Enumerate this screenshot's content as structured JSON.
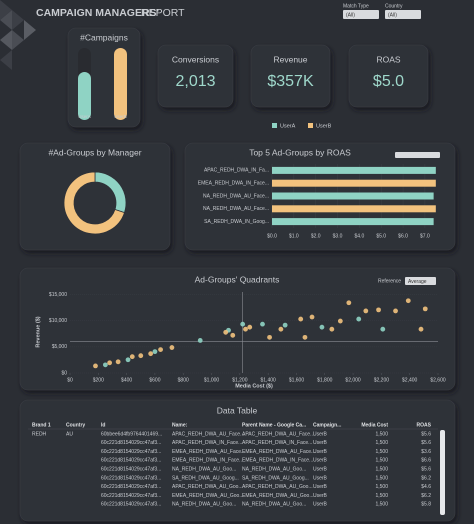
{
  "header": {
    "title": "CAMPAIGN MANAGERS'",
    "title_suffix": "REPORT"
  },
  "filters": [
    {
      "label": "Match Type",
      "value": "(All)"
    },
    {
      "label": "Country",
      "value": "(All)"
    }
  ],
  "campaigns": {
    "title": "#Campaigns",
    "categories": [
      "UserA",
      "UserB"
    ],
    "values": [
      2,
      3
    ],
    "colors": [
      "#8fd3c4",
      "#f2c27e"
    ]
  },
  "kpis": [
    {
      "title": "Conversions",
      "value": "2,013"
    },
    {
      "title": "Revenue",
      "value": "$357K"
    },
    {
      "title": "ROAS",
      "value": "$5.0"
    }
  ],
  "legend": {
    "items": [
      {
        "name": "UserA",
        "color": "#8fd3c4"
      },
      {
        "name": "UserB",
        "color": "#f2c27e"
      }
    ]
  },
  "chart_data": [
    {
      "type": "donut",
      "title": "#Ad-Groups by Manager",
      "values": [
        3,
        7
      ],
      "colors": [
        "#8fd3c4",
        "#f2c27e"
      ]
    },
    {
      "type": "hbar",
      "title": "Top 5 Ad-Groups by ROAS",
      "categories": [
        "APAC_REDH_DWA_IN_Fa...",
        "EMEA_REDH_DWA_IN_Face...",
        "NA_REDH_DWA_AU_Face...",
        "NA_REDH_DWA_AU_Face...",
        "SA_REDH_DWA_IN_Goog..."
      ],
      "values": [
        7.5,
        7.5,
        7.4,
        7.5,
        7.4
      ],
      "colors": [
        "#8fd3c4",
        "#f2c27e",
        "#8fd3c4",
        "#f2c27e",
        "#8fd3c4"
      ],
      "xlim": [
        0,
        7.6
      ],
      "xticks": [
        {
          "value": 0,
          "label": "$0.0"
        },
        {
          "value": 1,
          "label": "$1.0"
        },
        {
          "value": 2,
          "label": "$2.0"
        },
        {
          "value": 3,
          "label": "$3.0"
        },
        {
          "value": 4,
          "label": "$4.0"
        },
        {
          "value": 5,
          "label": "$5.0"
        },
        {
          "value": 6,
          "label": "$6.0"
        },
        {
          "value": 7,
          "label": "$7.0"
        }
      ]
    },
    {
      "type": "scatter",
      "title": "Ad-Groups' Quadrants",
      "x_label": "Media Cost ($)",
      "y_label": "Revenue ($)",
      "reference_label": "Reference",
      "reference_option": "Average",
      "reference": {
        "x": 1220,
        "y": 6040
      },
      "series": [
        {
          "color": "#8fd3c4",
          "x": [
            250,
            410,
            600,
            920,
            1120,
            1220,
            1360,
            1520,
            1780,
            2040,
            2210
          ],
          "values": [
            1560,
            2530,
            4090,
            6230,
            8180,
            9350,
            9350,
            9160,
            8770,
            10320,
            8380
          ]
        },
        {
          "color": "#f2c27e",
          "x": [
            180,
            280,
            340,
            440,
            500,
            570,
            640,
            720,
            1100,
            1150,
            1240,
            1270,
            1410,
            1490,
            1630,
            1660,
            1710,
            1850,
            1910,
            1970,
            2090,
            2180,
            2300,
            2390,
            2480,
            2510
          ],
          "values": [
            1360,
            1950,
            2140,
            3120,
            3310,
            3700,
            4480,
            4870,
            7790,
            7210,
            8380,
            8770,
            6820,
            8380,
            10320,
            6820,
            10710,
            8380,
            9940,
            13440,
            11880,
            12080,
            11880,
            13830,
            8380,
            12270
          ]
        }
      ],
      "xlim": [
        0,
        2600
      ],
      "xticks": [
        {
          "value": 0,
          "label": "$0"
        },
        {
          "value": 200,
          "label": "$200"
        },
        {
          "value": 400,
          "label": "$400"
        },
        {
          "value": 600,
          "label": "$600"
        },
        {
          "value": 800,
          "label": "$800"
        },
        {
          "value": 1000,
          "label": "$1,000"
        },
        {
          "value": 1200,
          "label": "$1,200"
        },
        {
          "value": 1400,
          "label": "$1,400"
        },
        {
          "value": 1600,
          "label": "$1,600"
        },
        {
          "value": 1800,
          "label": "$1,800"
        },
        {
          "value": 2000,
          "label": "$2,000"
        },
        {
          "value": 2200,
          "label": "$2,200"
        },
        {
          "value": 2400,
          "label": "$2,400"
        },
        {
          "value": 2600,
          "label": "$2,600"
        }
      ],
      "ylim": [
        0,
        15500
      ],
      "yticks": [
        {
          "value": 0,
          "label": "$0"
        },
        {
          "value": 5000,
          "label": "$5,000"
        },
        {
          "value": 10000,
          "label": "$10,000"
        },
        {
          "value": 15000,
          "label": "$15,000"
        }
      ]
    }
  ],
  "table": {
    "title": "Data Table",
    "columns": [
      "Brand 1",
      "Country",
      "Id",
      "Name:",
      "Parent Name - Google Ca...",
      "Campaign...",
      "Media Cost",
      "ROAS"
    ],
    "rows": [
      [
        "REDH",
        "AU",
        "60bbee6d4fb9764401469...",
        "APAC_REDH_DWA_AU_Face...",
        "APAC_REDH_DWA_AU_Face...",
        "UserB",
        "1,500",
        "$5.6"
      ],
      [
        null,
        null,
        "60c221d8154029cc47af3...",
        "APAC_REDH_DWA_IN_Face...",
        "APAC_REDH_DWA_IN_Face...",
        "UserB",
        "1,500",
        "$5.6"
      ],
      [
        null,
        null,
        "60c221d8154029cc47af3...",
        "EMEA_REDH_DWA_AU_Face...",
        "EMEA_REDH_DWA_AU_Face...",
        "UserB",
        "1,500",
        "$3.6"
      ],
      [
        null,
        null,
        "60c221d8154029cc47af3...",
        "EMEA_REDH_DWA_IN_Face...",
        "EMEA_REDH_DWA_IN_Face...",
        "UserB",
        "1,500",
        "$6.6"
      ],
      [
        null,
        null,
        "60c221d8154029cc47af3...",
        "NA_REDH_DWA_AU_Goo...",
        "NA_REDH_DWA_AU_Goo...",
        "UserB",
        "1,500",
        "$5.6"
      ],
      [
        null,
        null,
        "60c221d8154029cc47af3...",
        "SA_REDH_DWA_AU_Goog...",
        "SA_REDH_DWA_AU_Goog...",
        "UserB",
        "1,500",
        "$6.2"
      ],
      [
        null,
        null,
        "60c221d8154029cc47af3...",
        "APAC_REDH_DWA_AU_Goo...",
        "APAC_REDH_DWA_AU_Goo...",
        "UserB",
        "1,500",
        "$4.6"
      ],
      [
        null,
        null,
        "60c221d8154029cc47af3...",
        "EMEA_REDH_DWA_AU_Goo...",
        "EMEA_REDH_DWA_AU_Goo...",
        "UserB",
        "1,500",
        "$6.2"
      ],
      [
        null,
        null,
        "60c221d8154029cc47af3...",
        "NA_REDH_DWA_AU_Goo...",
        "NA_REDH_DWA_AU_Goo...",
        "UserB",
        "1,500",
        "$5.8"
      ]
    ]
  }
}
